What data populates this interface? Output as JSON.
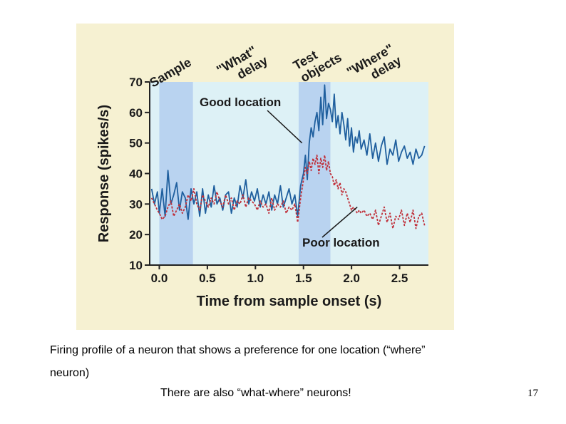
{
  "chart_data": {
    "type": "line",
    "title": "",
    "xlabel": "Time from sample onset (s)",
    "ylabel": "Response (spikes/s)",
    "xlim": [
      -0.1,
      2.8
    ],
    "ylim": [
      10,
      70
    ],
    "xticks": [
      0.0,
      0.5,
      1.0,
      1.5,
      2.0,
      2.5
    ],
    "xtick_labels": [
      "0.0",
      "0.5",
      "1.0",
      "1.5",
      "2.0",
      "2.5"
    ],
    "yticks": [
      10,
      20,
      30,
      40,
      50,
      60,
      70
    ],
    "ytick_labels": [
      "10",
      "20",
      "30",
      "40",
      "50",
      "60",
      "70"
    ],
    "phases": [
      {
        "label_lines": [
          "Sample"
        ],
        "start": 0.0,
        "end": 0.35,
        "shaded": true
      },
      {
        "label_lines": [
          "\"What\"",
          "delay"
        ],
        "start": 0.35,
        "end": 1.45,
        "shaded": false
      },
      {
        "label_lines": [
          "Test",
          "objects"
        ],
        "start": 1.45,
        "end": 1.78,
        "shaded": true
      },
      {
        "label_lines": [
          "\"Where\"",
          "delay"
        ],
        "start": 1.78,
        "end": 2.8,
        "shaded": false
      }
    ],
    "series": [
      {
        "name": "Good location",
        "color": "#1f5f9e",
        "dash": "solid",
        "x": [
          -0.08,
          -0.05,
          -0.02,
          0.0,
          0.03,
          0.06,
          0.09,
          0.12,
          0.15,
          0.18,
          0.21,
          0.24,
          0.27,
          0.3,
          0.33,
          0.36,
          0.39,
          0.42,
          0.45,
          0.48,
          0.51,
          0.54,
          0.57,
          0.6,
          0.63,
          0.66,
          0.69,
          0.72,
          0.75,
          0.78,
          0.81,
          0.84,
          0.87,
          0.9,
          0.93,
          0.96,
          0.99,
          1.02,
          1.05,
          1.08,
          1.11,
          1.14,
          1.17,
          1.2,
          1.23,
          1.26,
          1.29,
          1.32,
          1.35,
          1.38,
          1.41,
          1.44,
          1.47,
          1.5,
          1.52,
          1.54,
          1.56,
          1.58,
          1.6,
          1.62,
          1.64,
          1.66,
          1.68,
          1.7,
          1.72,
          1.74,
          1.76,
          1.78,
          1.8,
          1.82,
          1.84,
          1.86,
          1.88,
          1.9,
          1.92,
          1.94,
          1.96,
          1.98,
          2.0,
          2.02,
          2.04,
          2.06,
          2.08,
          2.1,
          2.13,
          2.16,
          2.19,
          2.22,
          2.25,
          2.28,
          2.31,
          2.34,
          2.37,
          2.4,
          2.43,
          2.46,
          2.49,
          2.52,
          2.55,
          2.58,
          2.61,
          2.64,
          2.67,
          2.7,
          2.73,
          2.76
        ],
        "y": [
          35,
          30,
          34,
          27,
          35,
          26,
          41,
          30,
          33,
          37,
          28,
          34,
          32,
          25,
          35,
          30,
          34,
          26,
          35,
          27,
          33,
          29,
          36,
          30,
          32,
          28,
          33,
          34,
          27,
          32,
          29,
          36,
          32,
          38,
          30,
          34,
          31,
          35,
          29,
          33,
          30,
          34,
          28,
          33,
          30,
          36,
          29,
          32,
          35,
          30,
          33,
          26,
          36,
          40,
          46,
          38,
          50,
          55,
          52,
          57,
          60,
          54,
          65,
          56,
          69,
          58,
          63,
          61,
          57,
          66,
          55,
          59,
          53,
          60,
          56,
          51,
          58,
          49,
          55,
          47,
          52,
          50,
          54,
          48,
          51,
          46,
          53,
          45,
          50,
          44,
          49,
          52,
          43,
          48,
          46,
          51,
          44,
          47,
          49,
          45,
          47,
          43,
          48,
          45,
          46,
          49
        ]
      },
      {
        "name": "Poor location",
        "color": "#c0303a",
        "dash": "dotted",
        "x": [
          -0.08,
          -0.05,
          -0.02,
          0.0,
          0.03,
          0.06,
          0.09,
          0.12,
          0.15,
          0.18,
          0.21,
          0.24,
          0.27,
          0.3,
          0.33,
          0.36,
          0.39,
          0.42,
          0.45,
          0.48,
          0.51,
          0.54,
          0.57,
          0.6,
          0.63,
          0.66,
          0.69,
          0.72,
          0.75,
          0.78,
          0.81,
          0.84,
          0.87,
          0.9,
          0.93,
          0.96,
          0.99,
          1.02,
          1.05,
          1.08,
          1.11,
          1.14,
          1.17,
          1.2,
          1.23,
          1.26,
          1.29,
          1.32,
          1.35,
          1.38,
          1.41,
          1.44,
          1.47,
          1.5,
          1.52,
          1.54,
          1.56,
          1.58,
          1.6,
          1.62,
          1.64,
          1.66,
          1.68,
          1.7,
          1.72,
          1.74,
          1.76,
          1.78,
          1.8,
          1.82,
          1.84,
          1.86,
          1.88,
          1.9,
          1.92,
          1.94,
          1.96,
          1.98,
          2.0,
          2.02,
          2.04,
          2.06,
          2.08,
          2.1,
          2.13,
          2.16,
          2.19,
          2.22,
          2.25,
          2.28,
          2.31,
          2.34,
          2.37,
          2.4,
          2.43,
          2.46,
          2.49,
          2.52,
          2.55,
          2.58,
          2.61,
          2.64,
          2.67,
          2.7,
          2.73,
          2.76
        ],
        "y": [
          32,
          30,
          28,
          27,
          25,
          26,
          29,
          31,
          26,
          28,
          30,
          27,
          29,
          33,
          31,
          35,
          30,
          28,
          33,
          31,
          29,
          32,
          30,
          34,
          31,
          29,
          33,
          30,
          32,
          28,
          31,
          30,
          33,
          29,
          32,
          31,
          30,
          28,
          31,
          29,
          30,
          27,
          32,
          28,
          30,
          29,
          31,
          27,
          29,
          28,
          30,
          24,
          32,
          38,
          42,
          40,
          44,
          41,
          45,
          43,
          46,
          40,
          45,
          42,
          46,
          41,
          44,
          40,
          39,
          36,
          38,
          35,
          37,
          33,
          35,
          34,
          32,
          30,
          28,
          29,
          28,
          27,
          28,
          27,
          28,
          26,
          27,
          25,
          28,
          23,
          26,
          29,
          24,
          27,
          22,
          26,
          25,
          28,
          23,
          27,
          24,
          28,
          22,
          26,
          27,
          23
        ]
      }
    ],
    "annotations": [
      {
        "text": "Good location",
        "target_series": "Good location",
        "target_x": 1.5,
        "target_y": 50
      },
      {
        "text": "Poor location",
        "target_series": "Poor location",
        "target_x": 2.06,
        "target_y": 29
      }
    ]
  },
  "caption": {
    "line1": "Firing profile of a neuron that shows a preference for one location (“where”",
    "line2": "neuron)",
    "line3": "There are also “what-where” neurons!"
  },
  "slide_number": "17",
  "colors": {
    "figure_background": "#f6f1d2",
    "plot_background": "#ddf1f6",
    "phase_shade": "#b9d3f0",
    "axis": "#222222"
  }
}
